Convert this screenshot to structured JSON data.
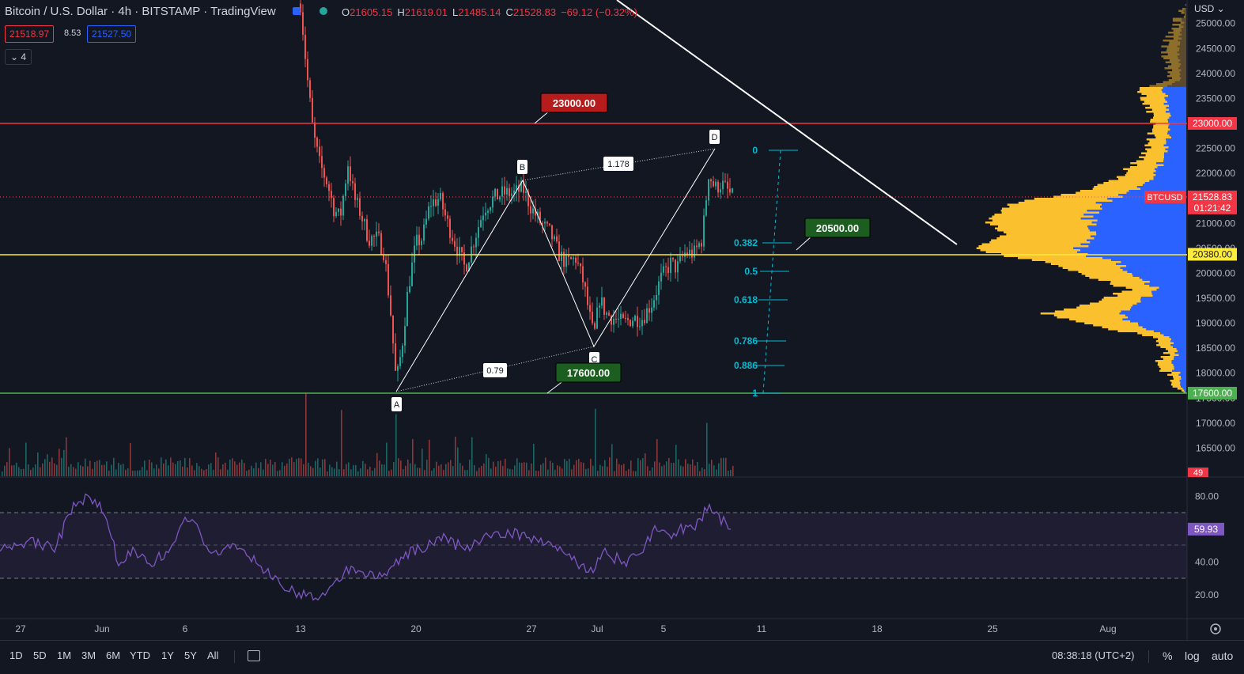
{
  "header": {
    "symbol": "Bitcoin / U.S. Dollar",
    "interval": "4h",
    "exchange": "BITSTAMP",
    "platform": "TradingView",
    "ohlc": {
      "o_label": "O",
      "o": "21605.15",
      "h_label": "H",
      "h": "21619.01",
      "l_label": "L",
      "l": "21485.14",
      "c_label": "C",
      "c": "21528.83",
      "change": "−69.12 (−0.32%)"
    },
    "bid": "21518.97",
    "spread": "8.53",
    "ask": "21527.50",
    "indicator_count": "4",
    "currency": "USD"
  },
  "bottom_bar": {
    "timeframes": [
      "1D",
      "5D",
      "1M",
      "3M",
      "6M",
      "YTD",
      "1Y",
      "5Y",
      "All"
    ],
    "clock": "08:38:18 (UTC+2)",
    "percent": "%",
    "log": "log",
    "auto": "auto"
  },
  "colors": {
    "background": "#131722",
    "up": "#26a69a",
    "down": "#ef5350",
    "red_line": "#f23645",
    "yellow_line": "#ffeb3b",
    "green_line": "#4caf50",
    "fib": "#00bcd4",
    "rsi": "#7e57c2",
    "vp_yellow": "#fbc02d",
    "vp_blue": "#2962ff"
  },
  "chart_data": [
    {
      "type": "candlestick",
      "title": "Bitcoin / U.S. Dollar, 4h, BITSTAMP",
      "x_ticks": [
        "27",
        "Jun",
        "6",
        "13",
        "20",
        "27",
        "Jul",
        "5",
        "11",
        "18",
        "25",
        "Aug"
      ],
      "y_ticks": [
        "25000.00",
        "24500.00",
        "24000.00",
        "23500.00",
        "23000.00",
        "22500.00",
        "22000.00",
        "21500.00",
        "21000.00",
        "20500.00",
        "20000.00",
        "19500.00",
        "19000.00",
        "18500.00",
        "18000.00",
        "17500.00",
        "17000.00",
        "16500.00"
      ],
      "ylim": [
        16350,
        25400
      ],
      "last_price": {
        "label": "BTCUSD",
        "value": "21528.83",
        "countdown": "01:21:42"
      },
      "horizontal_levels": [
        {
          "value": 23000,
          "label": "23000.00",
          "color": "#f23645"
        },
        {
          "value": 20380,
          "label": "20380.00",
          "color": "#ffeb3b"
        },
        {
          "value": 17600,
          "label": "17600.00",
          "color": "#4caf50"
        }
      ],
      "callouts": [
        {
          "label": "23000.00",
          "color": "#b71c1c"
        },
        {
          "label": "20500.00",
          "color": "#1b5e20"
        },
        {
          "label": "17600.00",
          "color": "#1b5e20"
        }
      ],
      "pattern_points": [
        {
          "label": "A",
          "date": "Jun 18",
          "price": 17600
        },
        {
          "label": "B",
          "date": "Jun 26",
          "price": 21870
        },
        {
          "label": "C",
          "date": "Jul 1",
          "price": 18550
        },
        {
          "label": "D",
          "date": "Jul 8",
          "price": 22480
        }
      ],
      "pattern_ratios": [
        "1.178",
        "0.79"
      ],
      "fib_levels": [
        "0",
        "0.382",
        "0.5",
        "0.618",
        "0.786",
        "0.886",
        "1"
      ],
      "volume_axis_label": "49",
      "trendline": {
        "from": {
          "date": "Jun 13",
          "price": 27400
        },
        "to": {
          "date": "Jul 22",
          "price": 20550
        }
      }
    },
    {
      "type": "line",
      "title": "RSI",
      "y_ticks": [
        "80.00",
        "60.00",
        "40.00",
        "20.00"
      ],
      "ylim": [
        12,
        88
      ],
      "bands": [
        70,
        50,
        30
      ],
      "last_value": "59.93"
    }
  ]
}
